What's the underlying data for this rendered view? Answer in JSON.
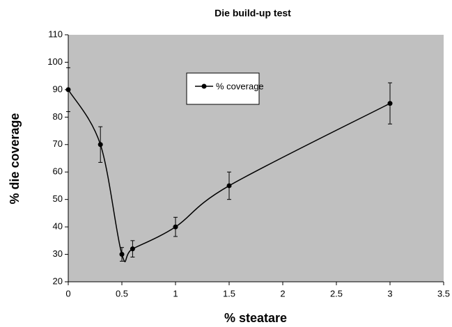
{
  "chart_data": {
    "type": "line",
    "title": "Die build-up test",
    "xlabel": "% steatare",
    "ylabel": "% die coverage",
    "x": [
      0,
      0.3,
      0.5,
      0.6,
      1,
      1.5,
      3
    ],
    "series": [
      {
        "name": "% coverage",
        "color": "#000000",
        "values": [
          90,
          70,
          30,
          32,
          40,
          55,
          85
        ],
        "errors": [
          8,
          6.5,
          2.5,
          3,
          3.5,
          5,
          7.5
        ]
      }
    ],
    "xlim": [
      0,
      3.5
    ],
    "xticks": [
      0,
      0.5,
      1,
      1.5,
      2,
      2.5,
      3,
      3.5
    ],
    "ylim": [
      20,
      110
    ],
    "yticks": [
      20,
      30,
      40,
      50,
      60,
      70,
      80,
      90,
      100,
      110
    ],
    "smooth": true,
    "plot_background": "#c0c0c0"
  }
}
